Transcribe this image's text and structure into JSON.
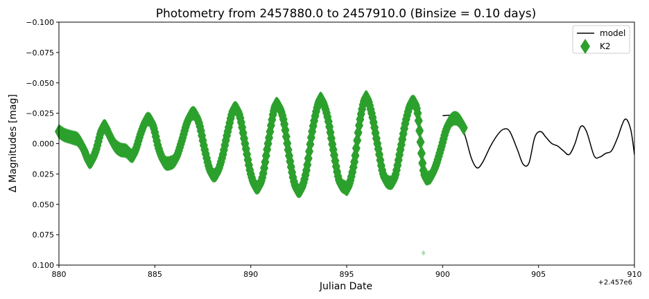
{
  "chart_data": {
    "type": "line",
    "title": "Photometry from 2457880.0 to 2457910.0 (Binsize = 0.10 days)",
    "xlabel": "Julian Date",
    "ylabel": "Δ Magnitudes [mag]",
    "offset_label": "+2.457e6",
    "xlim": [
      880,
      910
    ],
    "ylim": [
      -0.1,
      0.1
    ],
    "y_inverted": true,
    "x_ticks": [
      880,
      885,
      890,
      895,
      900,
      905,
      910
    ],
    "y_ticks": [
      -0.1,
      -0.075,
      -0.05,
      -0.025,
      0.0,
      0.025,
      0.05,
      0.075,
      0.1
    ],
    "x_tick_labels": [
      "880",
      "885",
      "890",
      "895",
      "900",
      "905",
      "910"
    ],
    "y_tick_labels": [
      "−0.100",
      "−0.075",
      "−0.050",
      "−0.025",
      "0.000",
      "0.025",
      "0.050",
      "0.075",
      "0.100"
    ],
    "grid": false,
    "legend_position": "top-right",
    "legend": [
      {
        "name": "model",
        "kind": "line",
        "color": "#000000"
      },
      {
        "name": "K2",
        "kind": "diamond",
        "color": "#2ca02c"
      }
    ],
    "series": [
      {
        "name": "model",
        "color": "#000000",
        "points": [
          [
            900.0,
            -0.023
          ],
          [
            900.5,
            -0.023
          ],
          [
            900.9,
            -0.018
          ],
          [
            901.2,
            -0.005
          ],
          [
            901.5,
            0.012
          ],
          [
            901.8,
            0.02
          ],
          [
            902.1,
            0.015
          ],
          [
            902.5,
            0.002
          ],
          [
            902.9,
            -0.008
          ],
          [
            903.2,
            -0.012
          ],
          [
            903.5,
            -0.01
          ],
          [
            903.9,
            0.005
          ],
          [
            904.2,
            0.017
          ],
          [
            904.5,
            0.016
          ],
          [
            904.8,
            -0.005
          ],
          [
            905.1,
            -0.01
          ],
          [
            905.4,
            -0.005
          ],
          [
            905.7,
            0.0
          ],
          [
            906.0,
            0.002
          ],
          [
            906.3,
            0.006
          ],
          [
            906.6,
            0.009
          ],
          [
            906.9,
            0.0
          ],
          [
            907.2,
            -0.014
          ],
          [
            907.5,
            -0.01
          ],
          [
            907.9,
            0.01
          ],
          [
            908.2,
            0.011
          ],
          [
            908.5,
            0.008
          ],
          [
            908.8,
            0.006
          ],
          [
            909.1,
            -0.004
          ],
          [
            909.5,
            -0.02
          ],
          [
            909.8,
            -0.012
          ],
          [
            910.0,
            0.009
          ]
        ]
      },
      {
        "name": "K2",
        "color": "#2ca02c",
        "points": [
          [
            880.0,
            -0.01
          ],
          [
            880.3,
            -0.007
          ],
          [
            880.7,
            -0.005
          ],
          [
            881.0,
            -0.003
          ],
          [
            881.3,
            0.005
          ],
          [
            881.6,
            0.015
          ],
          [
            881.9,
            0.007
          ],
          [
            882.2,
            -0.01
          ],
          [
            882.4,
            -0.014
          ],
          [
            882.6,
            -0.008
          ],
          [
            882.9,
            0.001
          ],
          [
            883.2,
            0.005
          ],
          [
            883.5,
            0.006
          ],
          [
            883.8,
            0.01
          ],
          [
            884.0,
            0.005
          ],
          [
            884.3,
            -0.01
          ],
          [
            884.6,
            -0.02
          ],
          [
            884.9,
            -0.015
          ],
          [
            885.2,
            0.004
          ],
          [
            885.5,
            0.015
          ],
          [
            885.8,
            0.016
          ],
          [
            886.1,
            0.012
          ],
          [
            886.4,
            -0.002
          ],
          [
            886.7,
            -0.018
          ],
          [
            887.0,
            -0.025
          ],
          [
            887.3,
            -0.017
          ],
          [
            887.6,
            0.005
          ],
          [
            887.9,
            0.023
          ],
          [
            888.2,
            0.025
          ],
          [
            888.5,
            0.012
          ],
          [
            888.8,
            -0.01
          ],
          [
            889.1,
            -0.028
          ],
          [
            889.4,
            -0.024
          ],
          [
            889.7,
            0.0
          ],
          [
            890.0,
            0.025
          ],
          [
            890.3,
            0.036
          ],
          [
            890.6,
            0.028
          ],
          [
            890.9,
            0.0
          ],
          [
            891.2,
            -0.027
          ],
          [
            891.4,
            -0.032
          ],
          [
            891.7,
            -0.02
          ],
          [
            892.0,
            0.01
          ],
          [
            892.3,
            0.034
          ],
          [
            892.6,
            0.038
          ],
          [
            892.9,
            0.022
          ],
          [
            893.2,
            -0.01
          ],
          [
            893.5,
            -0.032
          ],
          [
            893.7,
            -0.036
          ],
          [
            894.0,
            -0.022
          ],
          [
            894.3,
            0.005
          ],
          [
            894.6,
            0.03
          ],
          [
            894.9,
            0.036
          ],
          [
            895.1,
            0.035
          ],
          [
            895.4,
            0.015
          ],
          [
            895.7,
            -0.02
          ],
          [
            896.0,
            -0.038
          ],
          [
            896.3,
            -0.025
          ],
          [
            896.6,
            0.0
          ],
          [
            896.9,
            0.025
          ],
          [
            897.2,
            0.032
          ],
          [
            897.5,
            0.028
          ],
          [
            897.8,
            0.005
          ],
          [
            898.1,
            -0.02
          ],
          [
            898.4,
            -0.034
          ],
          [
            898.7,
            -0.025
          ],
          [
            899.0,
            0.022
          ],
          [
            899.3,
            0.028
          ],
          [
            899.6,
            0.02
          ],
          [
            899.9,
            0.005
          ],
          [
            900.2,
            -0.012
          ],
          [
            900.5,
            -0.02
          ],
          [
            900.8,
            -0.02
          ],
          [
            901.1,
            -0.013
          ],
          [
            899.0,
            0.09
          ]
        ]
      }
    ]
  }
}
